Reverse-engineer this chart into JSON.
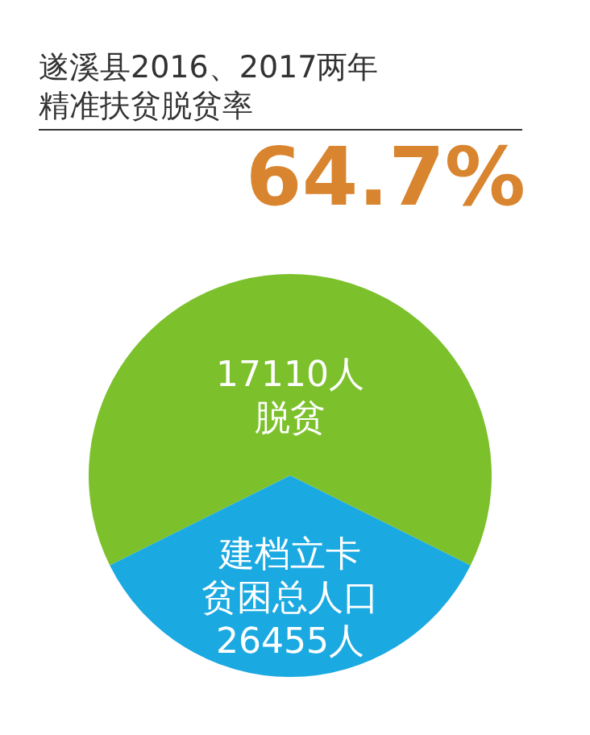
{
  "chart_data": {
    "type": "pie",
    "title": "遂溪县2016、2017两年精准扶贫脱贫率",
    "categories": [
      "17110人脱贫",
      "建档立卡贫困总人口26455人"
    ],
    "values": [
      64.7,
      35.3
    ],
    "colors": [
      "#7cc12c",
      "#1ba9e1"
    ],
    "annotations": [
      "64.7%"
    ],
    "legend": false
  }
}
